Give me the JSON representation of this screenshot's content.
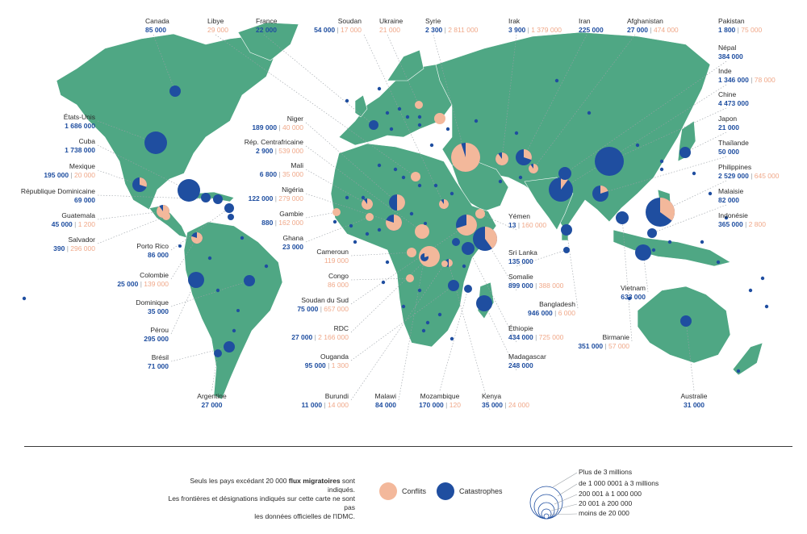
{
  "colors": {
    "land": "#4fa784",
    "conflicts": "#f3b89b",
    "disasters": "#1f4ea0",
    "text": "#2b2b2b"
  },
  "labels": [
    {
      "id": "canada",
      "name": "Canada",
      "dis": "85 000"
    },
    {
      "id": "libye",
      "name": "Libye",
      "con": "29 000"
    },
    {
      "id": "france",
      "name": "France",
      "dis": "22 000"
    },
    {
      "id": "soudan",
      "name": "Soudan",
      "dis": "54 000",
      "con": "17 000"
    },
    {
      "id": "ukraine",
      "name": "Ukraine",
      "con": "21 000"
    },
    {
      "id": "syrie",
      "name": "Syrie",
      "dis": "2 300",
      "con": "2 811 000"
    },
    {
      "id": "irak",
      "name": "Irak",
      "dis": "3 900",
      "con": "1 379 000"
    },
    {
      "id": "iran",
      "name": "Iran",
      "dis": "225 000"
    },
    {
      "id": "afghanistan",
      "name": "Afghanistan",
      "dis": "27 000",
      "con": "474 000"
    },
    {
      "id": "pakistan",
      "name": "Pakistan",
      "dis": "1 800",
      "con": "75 000"
    },
    {
      "id": "nepal",
      "name": "Népal",
      "dis": "384 000"
    },
    {
      "id": "inde",
      "name": "Inde",
      "dis": "1 346 000",
      "con": "78 000"
    },
    {
      "id": "chine",
      "name": "Chine",
      "dis": "4 473 000"
    },
    {
      "id": "japon",
      "name": "Japon",
      "dis": "21 000"
    },
    {
      "id": "thailande",
      "name": "Thaïlande",
      "dis": "50 000"
    },
    {
      "id": "philippines",
      "name": "Philippines",
      "dis": "2 529 000",
      "con": "645 000"
    },
    {
      "id": "malaisie",
      "name": "Malaisie",
      "dis": "82 000"
    },
    {
      "id": "indonesie",
      "name": "Indonésie",
      "dis": "365 000",
      "con": "2 800"
    },
    {
      "id": "etatsunis",
      "name": "États-Unis",
      "dis": "1 686 000"
    },
    {
      "id": "cuba",
      "name": "Cuba",
      "dis": "1 738 000"
    },
    {
      "id": "mexique",
      "name": "Mexique",
      "dis": "195 000",
      "con": "20 000"
    },
    {
      "id": "repdom",
      "name": "République Dominicaine",
      "dis": "69 000"
    },
    {
      "id": "guatemala",
      "name": "Guatemala",
      "dis": "45 000",
      "con": "1 200"
    },
    {
      "id": "salvador",
      "name": "Salvador",
      "dis": "390",
      "con": "296 000"
    },
    {
      "id": "portorico",
      "name": "Porto Rico",
      "dis": "86 000"
    },
    {
      "id": "colombie",
      "name": "Colombie",
      "dis": "25 000",
      "con": "139 000"
    },
    {
      "id": "dominique",
      "name": "Dominique",
      "dis": "35 000"
    },
    {
      "id": "perou",
      "name": "Pérou",
      "dis": "295 000"
    },
    {
      "id": "bresil",
      "name": "Brésil",
      "dis": "71 000"
    },
    {
      "id": "argentine",
      "name": "Argentine",
      "dis": "27 000"
    },
    {
      "id": "niger",
      "name": "Niger",
      "dis": "189 000",
      "con": "40 000"
    },
    {
      "id": "rca",
      "name": "Rép. Centrafricaine",
      "dis": "2 900",
      "con": "539 000"
    },
    {
      "id": "mali",
      "name": "Mali",
      "dis": "6 800",
      "con": "35 000"
    },
    {
      "id": "nigeria",
      "name": "Nigéria",
      "dis": "122 000",
      "con": "279 000"
    },
    {
      "id": "gambie",
      "name": "Gambie",
      "dis": "880",
      "con": "162 000"
    },
    {
      "id": "ghana",
      "name": "Ghana",
      "dis": "23 000"
    },
    {
      "id": "cameroun",
      "name": "Cameroun",
      "con": "119 000"
    },
    {
      "id": "congo",
      "name": "Congo",
      "con": "86 000"
    },
    {
      "id": "soudansud",
      "name": "Soudan du Sud",
      "dis": "75 000",
      "con": "657 000"
    },
    {
      "id": "rdc",
      "name": "RDC",
      "dis": "27 000",
      "con": "2 166 000"
    },
    {
      "id": "ouganda",
      "name": "Ouganda",
      "dis": "95 000",
      "con": "1 300"
    },
    {
      "id": "burundi",
      "name": "Burundi",
      "dis": "11 000",
      "con": "14 000"
    },
    {
      "id": "malawi",
      "name": "Malawi",
      "dis": "84 000"
    },
    {
      "id": "mozambique",
      "name": "Mozambique",
      "dis": "170 000",
      "con": "120"
    },
    {
      "id": "kenya",
      "name": "Kenya",
      "dis": "35 000",
      "con": "24 000"
    },
    {
      "id": "yemen",
      "name": "Yémen",
      "dis": "13",
      "con": "160 000"
    },
    {
      "id": "srilanka",
      "name": "Sri Lanka",
      "dis": "135 000"
    },
    {
      "id": "somalie",
      "name": "Somalie",
      "dis": "899 000",
      "con": "388 000"
    },
    {
      "id": "ethiopie",
      "name": "Éthiopie",
      "dis": "434 000",
      "con": "725 000"
    },
    {
      "id": "madagascar",
      "name": "Madagascar",
      "dis": "248 000"
    },
    {
      "id": "bangladesh",
      "name": "Bangladesh",
      "dis": "946 000",
      "con": "6 000"
    },
    {
      "id": "birmanie",
      "name": "Birmanie",
      "dis": "351 000",
      "con": "57 000"
    },
    {
      "id": "vietnam",
      "name": "Vietnam",
      "dis": "633 000"
    },
    {
      "id": "australie",
      "name": "Australie",
      "dis": "31 000"
    }
  ],
  "note": {
    "line1_a": "Seuls les pays excédant 20 000 ",
    "line1_b": "flux migratoires",
    "line1_c": " sont indiqués.",
    "line2": "Les frontières et désignations indiqués sur cette carte ne sont pas",
    "line3": "les données officielles de l'IDMC."
  },
  "legend": {
    "conflicts": "Conflits",
    "disasters": "Catastrophes",
    "sizes": [
      "Plus de 3 millions",
      "de 1 000 0001 à 3 millions",
      "200 001 à 1 000 000",
      "20 001 à 200 000",
      "moins de 20 000"
    ]
  }
}
